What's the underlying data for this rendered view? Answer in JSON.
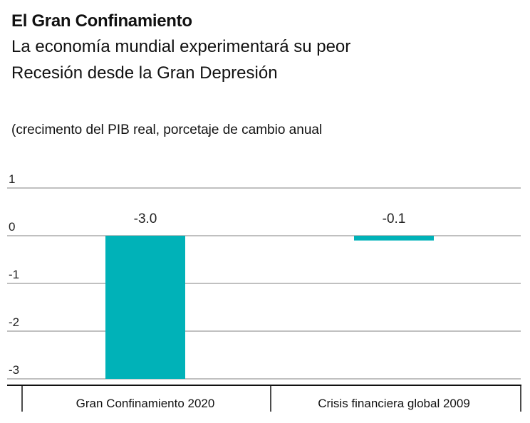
{
  "header": {
    "title": "El Gran Confinamiento",
    "subtitle_line1": "La economía mundial experimentará su peor",
    "subtitle_line2": "Recesión desde la Gran Depresión"
  },
  "unit_label": "(crecimento del PIB real, porcetaje de cambio anual",
  "colors": {
    "bar": "#00B2B8",
    "grid": "#9a9a9a",
    "axis": "#111111"
  },
  "chart_data": {
    "type": "bar",
    "categories": [
      "Gran Confinamiento 2020",
      "Crisis financiera global 2009"
    ],
    "values": [
      -3.0,
      -0.1
    ],
    "value_labels": [
      "-3.0",
      "-0.1"
    ],
    "ylim": [
      -3,
      1
    ],
    "yticks": [
      1,
      0,
      -1,
      -2,
      -3
    ],
    "ytick_labels": [
      "1",
      "0",
      "-1",
      "-2",
      "-3"
    ],
    "grid": true
  }
}
